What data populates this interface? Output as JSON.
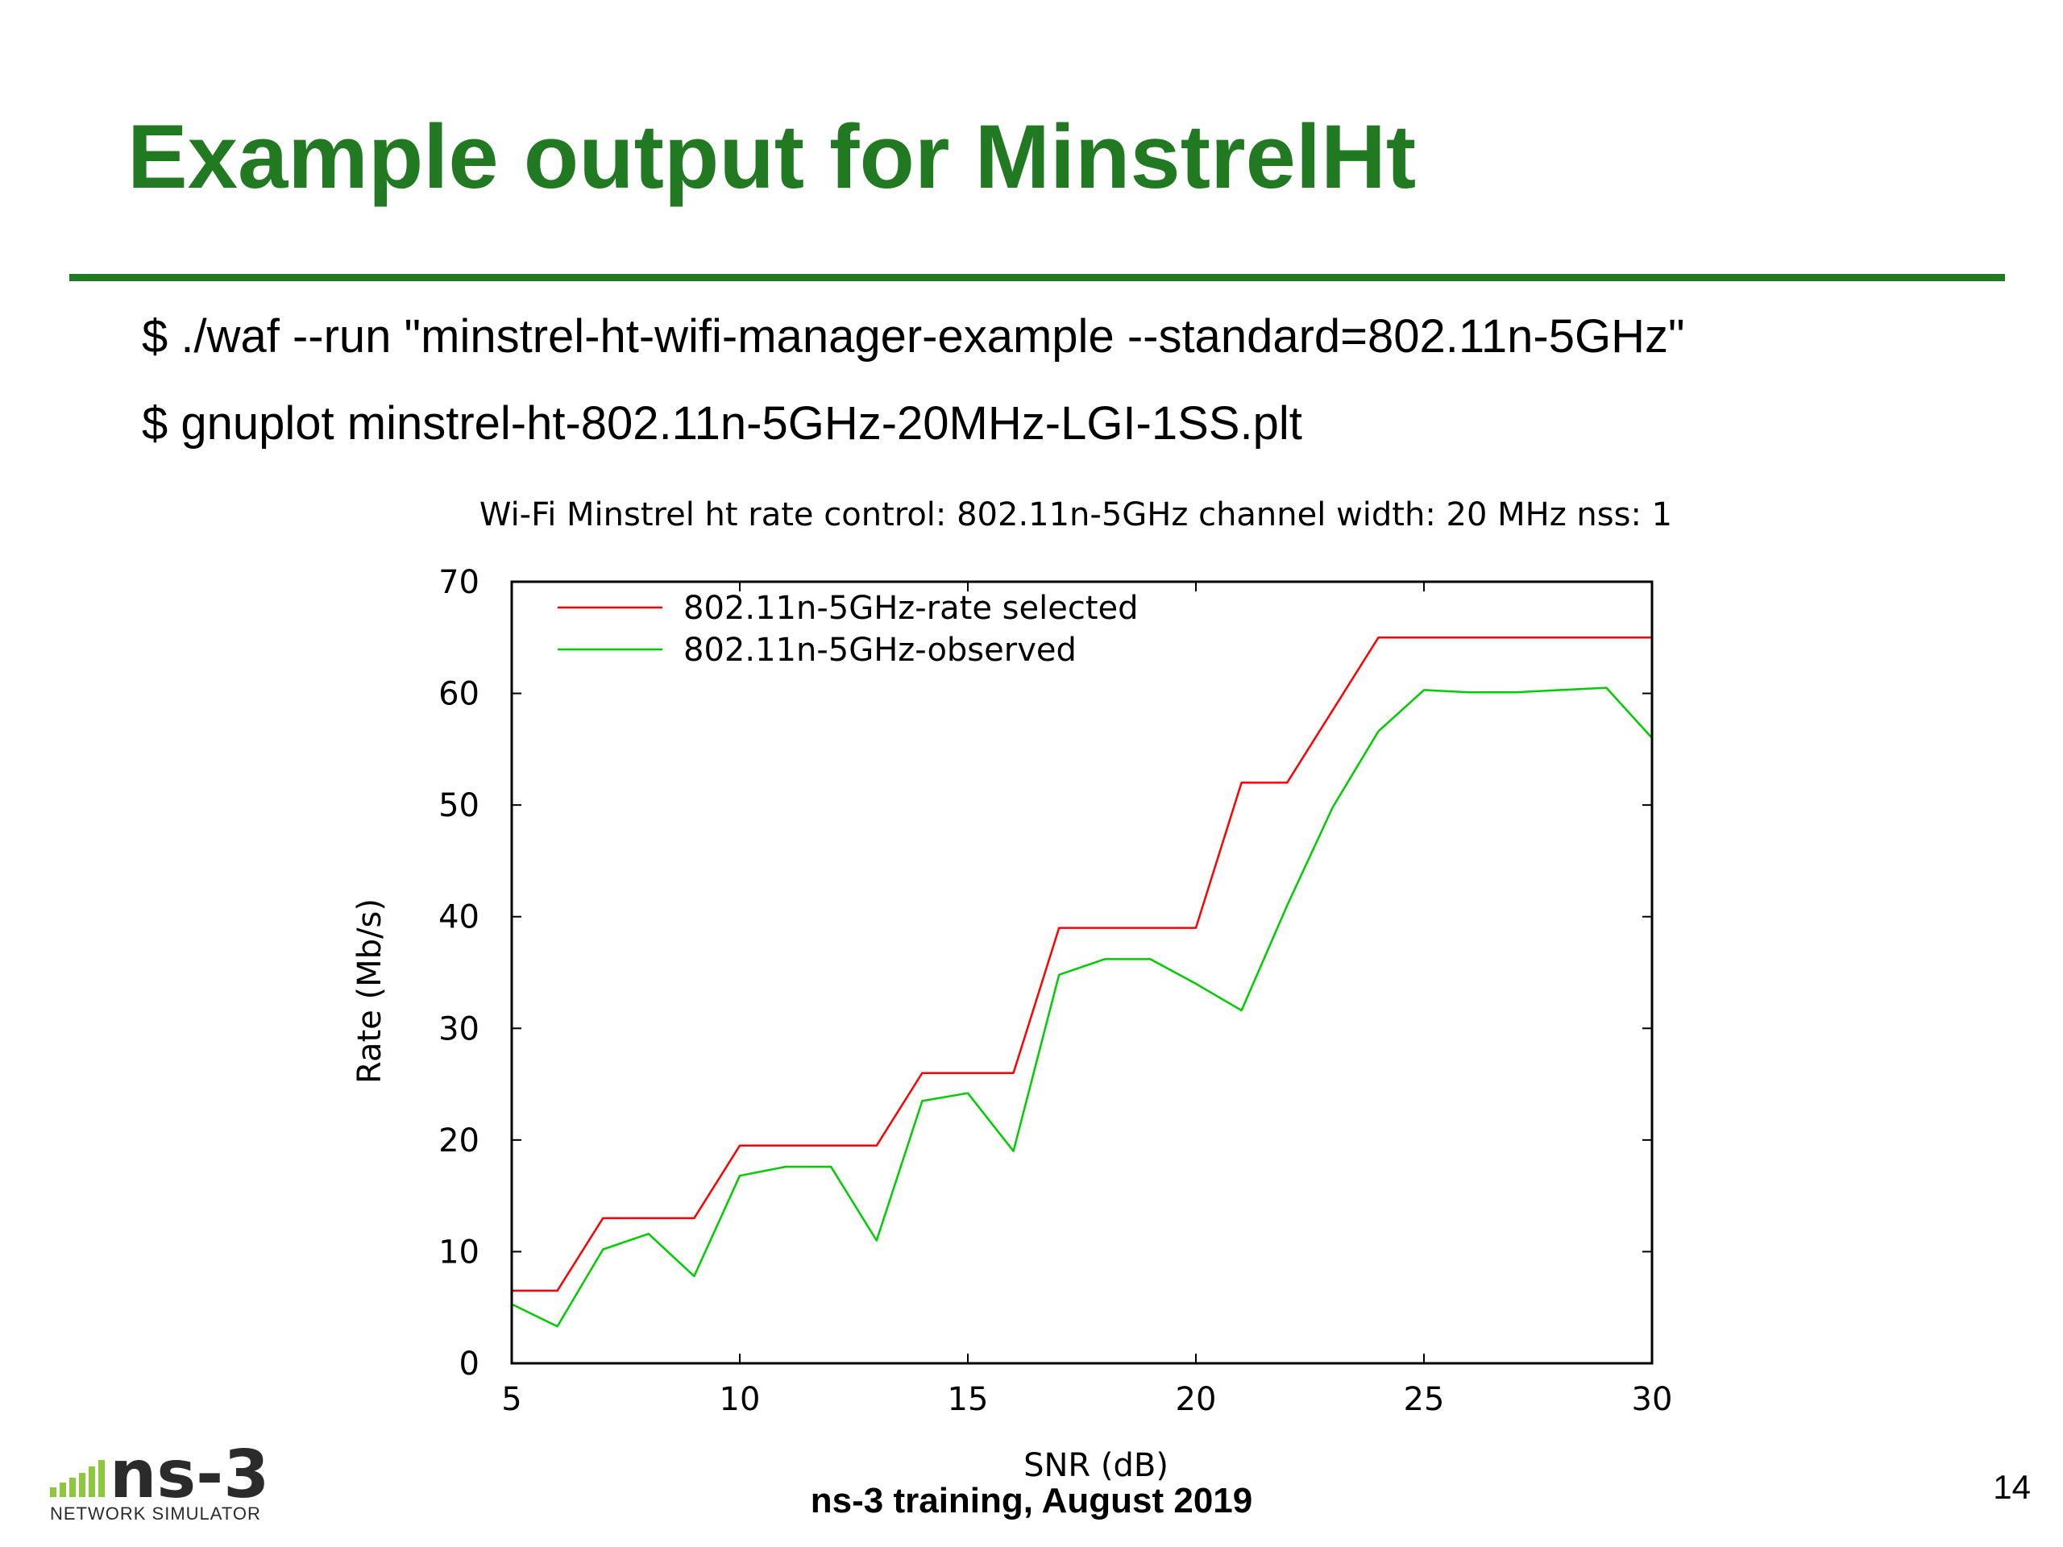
{
  "slide": {
    "title": "Example output for MinstrelHt",
    "commands": [
      "$ ./waf --run \"minstrel-ht-wifi-manager-example --standard=802.11n-5GHz\"",
      "$ gnuplot minstrel-ht-802.11n-5GHz-20MHz-LGI-1SS.plt"
    ],
    "footer": "ns-3 training, August 2019",
    "page_number": "14",
    "logo": {
      "mark": "ns-3",
      "subtitle": "NETWORK SIMULATOR"
    },
    "colors": {
      "title": "#217a21",
      "rule": "#217a21"
    }
  },
  "chart_data": {
    "type": "line",
    "title": "Wi-Fi Minstrel ht rate control: 802.11n-5GHz channel width: 20 MHz nss: 1",
    "xlabel": "SNR (dB)",
    "ylabel": "Rate (Mb/s)",
    "xlim": [
      5,
      30
    ],
    "ylim": [
      0,
      70
    ],
    "xticks": [
      "5",
      "10",
      "15",
      "20",
      "25",
      "30"
    ],
    "yticks": [
      "0",
      "10",
      "20",
      "30",
      "40",
      "50",
      "60",
      "70"
    ],
    "grid": false,
    "legend_position": "top-left",
    "series": [
      {
        "name": "802.11n-5GHz-rate selected",
        "color": "#ff0000",
        "x": [
          5,
          6,
          7,
          8,
          9,
          10,
          11,
          12,
          13,
          14,
          15,
          16,
          17,
          18,
          19,
          20,
          21,
          22,
          23,
          24,
          25,
          26,
          27,
          28,
          29,
          30
        ],
        "y": [
          6.5,
          6.5,
          13.0,
          13.0,
          13.0,
          19.5,
          19.5,
          19.5,
          19.5,
          26.0,
          26.0,
          26.0,
          39.0,
          39.0,
          39.0,
          39.0,
          52.0,
          52.0,
          58.5,
          65.0,
          65.0,
          65.0,
          65.0,
          65.0,
          65.0,
          65.0
        ]
      },
      {
        "name": "802.11n-5GHz-observed",
        "color": "#00cc00",
        "x": [
          5,
          6,
          7,
          8,
          9,
          10,
          11,
          12,
          13,
          14,
          15,
          16,
          17,
          18,
          19,
          20,
          21,
          22,
          23,
          24,
          25,
          26,
          27,
          28,
          29,
          30
        ],
        "y": [
          5.3,
          3.3,
          10.2,
          11.6,
          7.8,
          16.8,
          17.6,
          17.6,
          11.0,
          23.5,
          24.2,
          19.0,
          34.8,
          36.2,
          36.2,
          34.0,
          31.6,
          41.0,
          49.8,
          56.6,
          60.3,
          60.1,
          60.1,
          60.3,
          60.5,
          56.0
        ]
      }
    ]
  }
}
